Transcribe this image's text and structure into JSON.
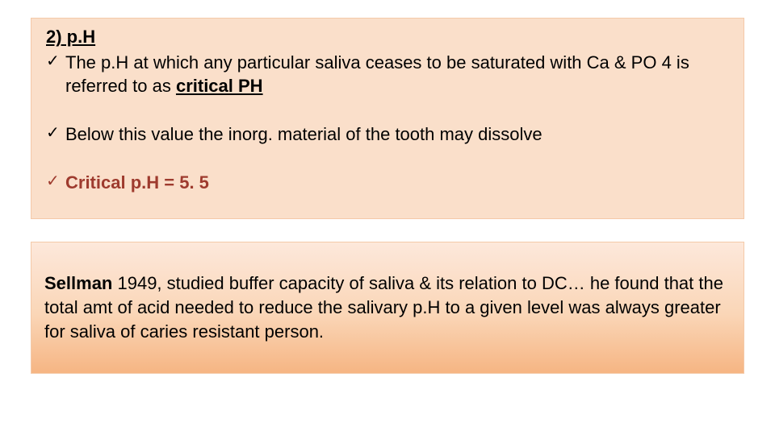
{
  "box1": {
    "background_color": "#fadfca",
    "border_color": "#f4c9a8",
    "text_color": "#000000",
    "accent_color": "#9e3b2e",
    "font_size_pt": 17,
    "heading": "2) p.H",
    "bullets": [
      {
        "pre": "The p.H at which any particular saliva ceases to be saturated with Ca & PO 4 is referred to as ",
        "emph": "critical PH",
        "post": ""
      },
      {
        "pre": "Below this value the inorg. material of the tooth may dissolve",
        "emph": "",
        "post": ""
      },
      {
        "pre": "",
        "emph": "Critical p.H = 5. 5",
        "post": ""
      }
    ],
    "check_glyph": "✓"
  },
  "box2": {
    "gradient_top": "#fde8db",
    "gradient_mid": "#fad6b7",
    "gradient_bottom": "#f6b583",
    "border_color": "#f4c9a8",
    "text_color": "#000000",
    "font_size_pt": 17,
    "lead_bold": "Sellman",
    "lead_rest": " 1949, studied buffer capacity of saliva & its relation to DC… he found that the total amt of acid needed to reduce the salivary p.H to a given level was always greater for saliva of caries resistant person."
  }
}
